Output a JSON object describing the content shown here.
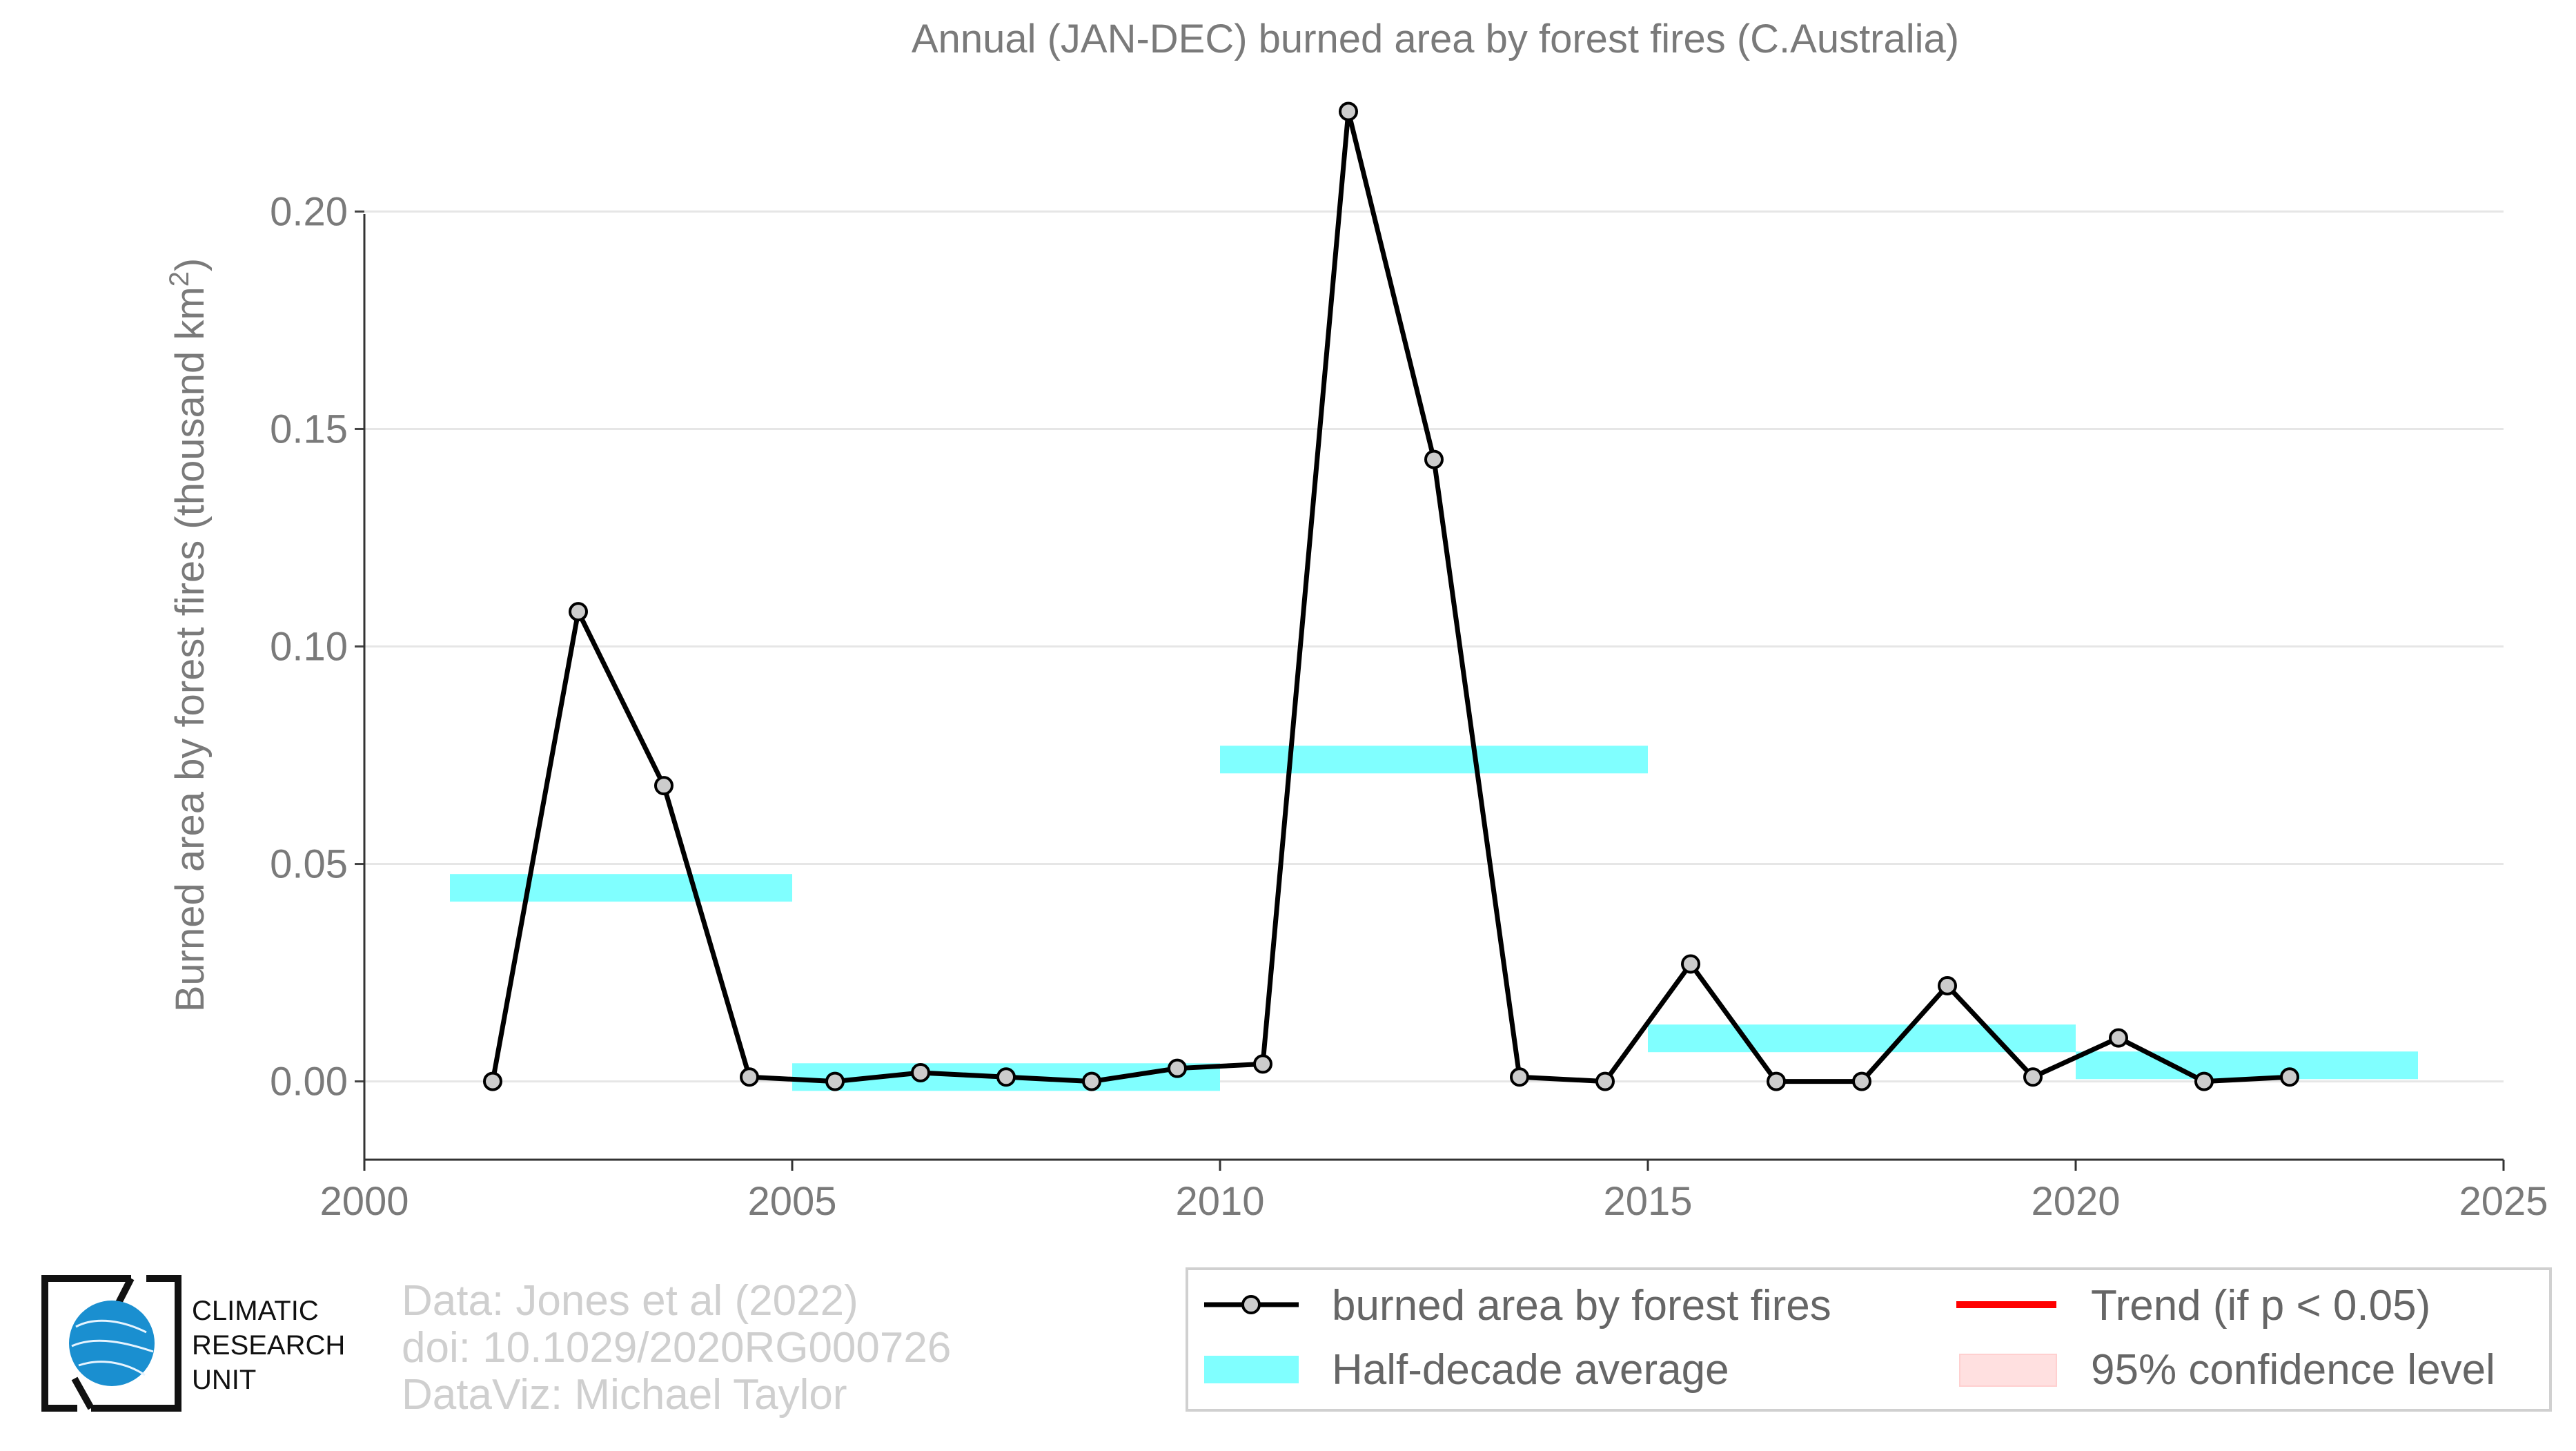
{
  "chart_data": {
    "type": "line",
    "title": "Annual (JAN-DEC) burned area by forest fires (C.Australia)",
    "ylabel": "Burned area by forest fires (thousand km",
    "ylabel_superscript": "2",
    "ylabel_close": ")",
    "xlim": [
      2000,
      2025
    ],
    "ylim": [
      -0.018,
      0.228
    ],
    "x_ticks": [
      2000,
      2005,
      2010,
      2015,
      2020,
      2025
    ],
    "y_ticks": [
      0.0,
      0.05,
      0.1,
      0.15,
      0.2
    ],
    "y_tick_labels": [
      "0.00",
      "0.05",
      "0.10",
      "0.15",
      "0.20"
    ],
    "grid": true,
    "series": [
      {
        "name": "burned area by forest fires",
        "color": "#000000",
        "marker_fill": "#cccccc",
        "x": [
          2001.5,
          2002.5,
          2003.5,
          2004.5,
          2005.5,
          2006.5,
          2007.5,
          2008.5,
          2009.5,
          2010.5,
          2011.5,
          2012.5,
          2013.5,
          2014.5,
          2015.5,
          2016.5,
          2017.5,
          2018.5,
          2019.5,
          2020.5,
          2021.5,
          2022.5
        ],
        "values": [
          0.0,
          0.108,
          0.068,
          0.001,
          0.0,
          0.002,
          0.001,
          0.0,
          0.003,
          0.004,
          0.223,
          0.143,
          0.001,
          0.0,
          0.027,
          0.0,
          0.0,
          0.022,
          0.001,
          0.01,
          0.0,
          0.001
        ]
      }
    ],
    "half_decade_average": {
      "name": "Half-decade average",
      "color": "#80ffff",
      "segments": [
        {
          "x_start": 2001,
          "x_end": 2005,
          "value": 0.0445
        },
        {
          "x_start": 2005,
          "x_end": 2010,
          "value": 0.001
        },
        {
          "x_start": 2010,
          "x_end": 2015,
          "value": 0.074
        },
        {
          "x_start": 2015,
          "x_end": 2020,
          "value": 0.0099
        },
        {
          "x_start": 2020,
          "x_end": 2024,
          "value": 0.0037
        }
      ]
    },
    "legend": {
      "position": "bottom-right",
      "items": [
        {
          "label": "burned area by forest fires",
          "kind": "line-marker",
          "color": "#000000"
        },
        {
          "label": "Trend (if p < 0.05)",
          "kind": "line",
          "color": "#ff0000"
        },
        {
          "label": "Half-decade average",
          "kind": "band",
          "color": "#80ffff"
        },
        {
          "label": "95% confidence level",
          "kind": "fill",
          "color": "#ffe0e0"
        }
      ]
    }
  },
  "credits": {
    "line1": "Data: Jones et al (2022)",
    "line2": "doi: 10.1029/2020RG000726",
    "line3": "DataViz: Michael Taylor"
  },
  "logo": {
    "line1": "CLIMATIC",
    "line2": "RESEARCH",
    "line3": "UNIT",
    "globe_color": "#1a8fd0"
  }
}
